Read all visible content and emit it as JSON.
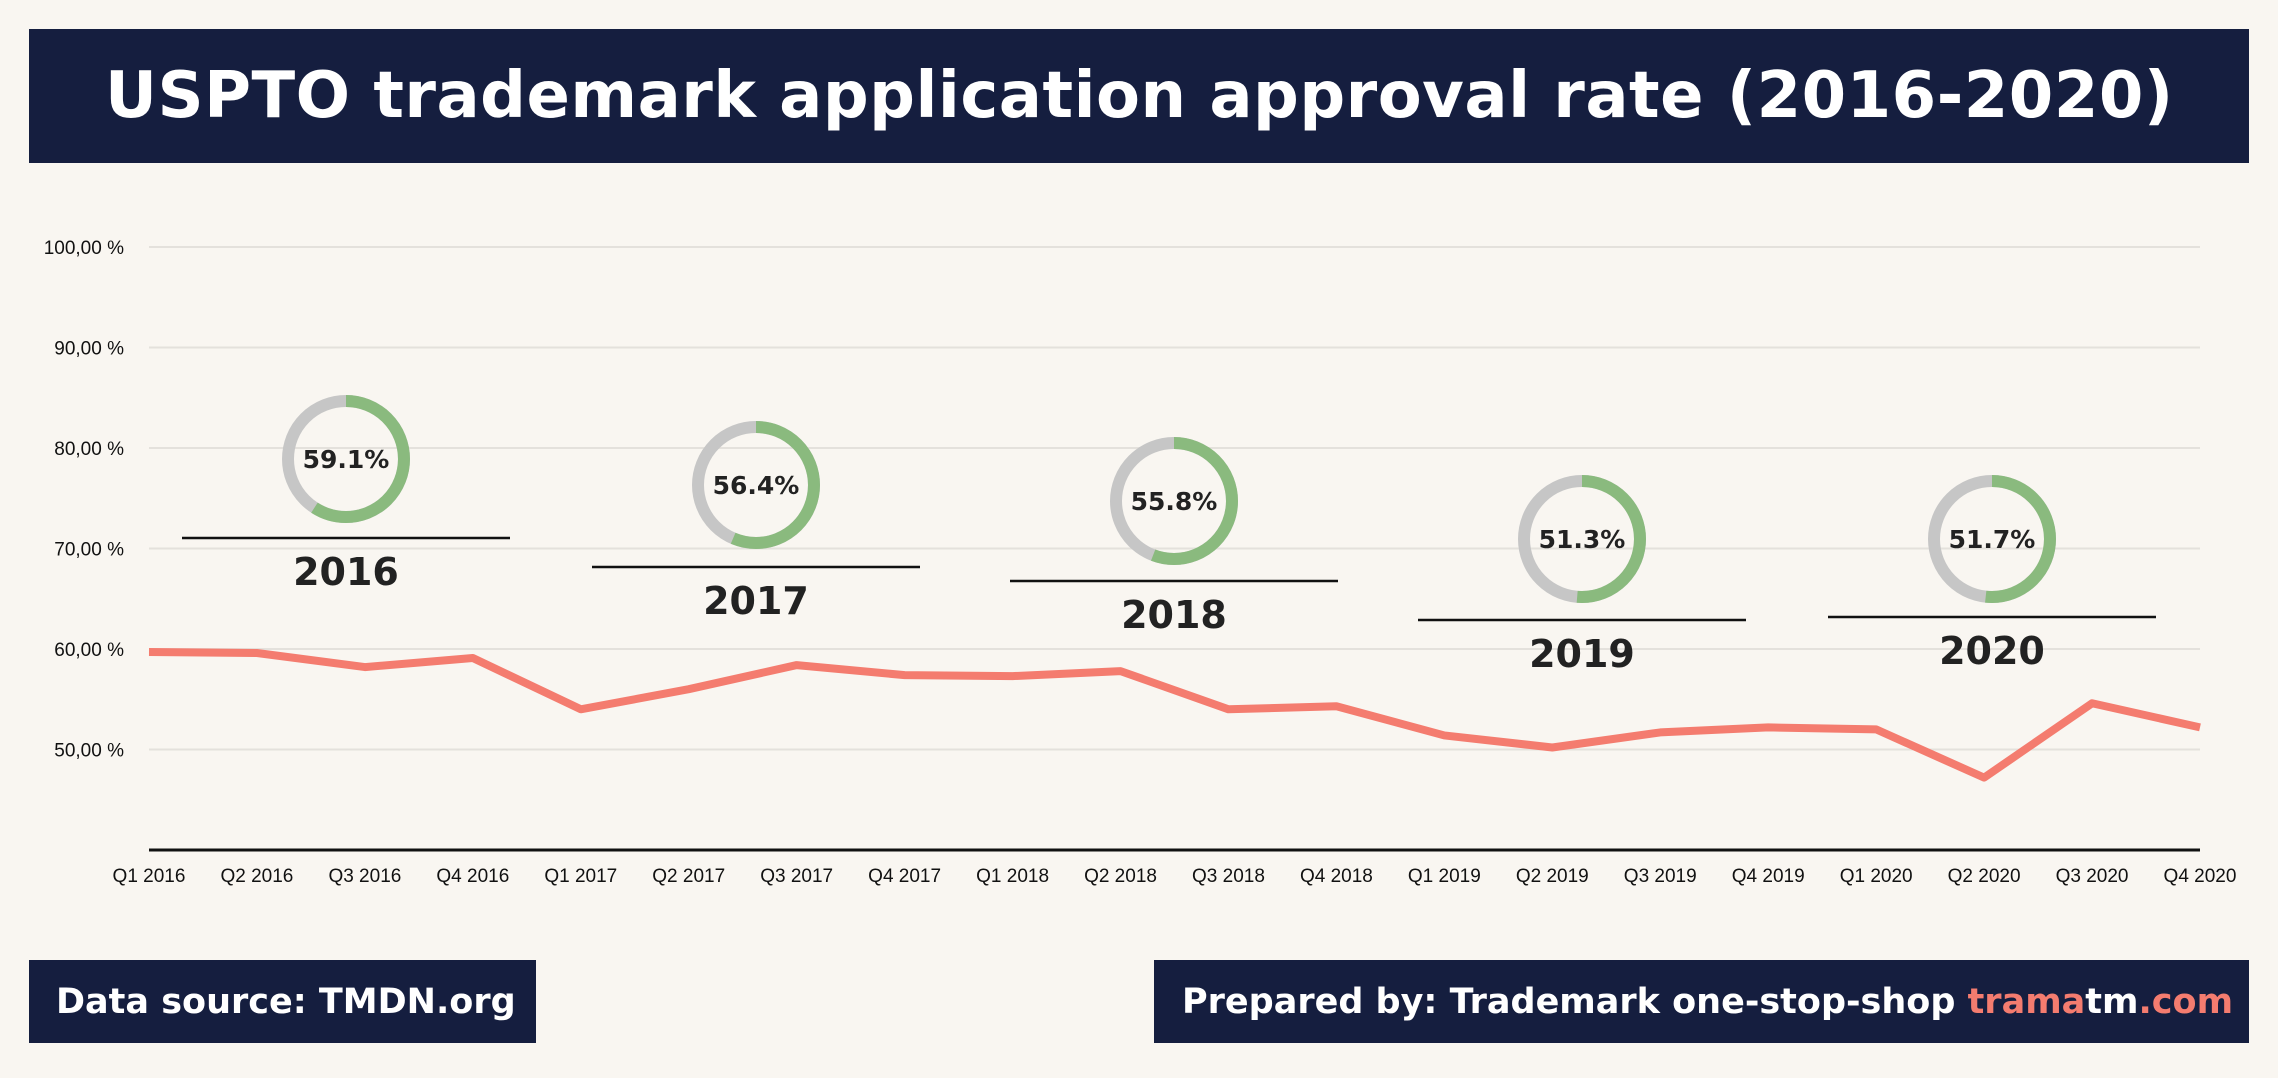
{
  "header": {
    "title": "USPTO trademark application approval rate (2016-2020)"
  },
  "footer": {
    "source": "Data source: TMDN.org",
    "prepared_prefix": "Prepared by: Trademark one-stop-shop ",
    "brand_part1": "trama",
    "brand_part2": "tm",
    "brand_part3": ".com"
  },
  "colors": {
    "navy": "#151e3f",
    "background": "#f9f6f1",
    "line": "#f47c6f",
    "donut_fill": "#8aba7e",
    "donut_rest": "#c6c6c6"
  },
  "chart_data": {
    "type": "line",
    "categories": [
      "Q1 2016",
      "Q2 2016",
      "Q3 2016",
      "Q4 2016",
      "Q1 2017",
      "Q2 2017",
      "Q3 2017",
      "Q4 2017",
      "Q1 2018",
      "Q2 2018",
      "Q3 2018",
      "Q4 2018",
      "Q1 2019",
      "Q2 2019",
      "Q3 2019",
      "Q4 2019",
      "Q1 2020",
      "Q2 2020",
      "Q3 2020",
      "Q4 2020"
    ],
    "values": [
      59.7,
      59.6,
      58.2,
      59.1,
      54.0,
      56.0,
      58.4,
      57.4,
      57.3,
      57.8,
      54.0,
      54.3,
      51.4,
      50.2,
      51.7,
      52.2,
      52.0,
      47.2,
      54.6,
      52.2
    ],
    "ylim": [
      40,
      100
    ],
    "yticks": [
      50,
      60,
      70,
      80,
      90,
      100
    ],
    "ytick_labels": [
      "50,00 %",
      "60,00 %",
      "70,00 %",
      "80,00 %",
      "90,00 %",
      "100,00 %"
    ],
    "grid": true,
    "annotations": [
      {
        "year": "2016",
        "rate_label": "59.1%",
        "rate": 59.1
      },
      {
        "year": "2017",
        "rate_label": "56.4%",
        "rate": 56.4
      },
      {
        "year": "2018",
        "rate_label": "55.8%",
        "rate": 55.8
      },
      {
        "year": "2019",
        "rate_label": "51.3%",
        "rate": 51.3
      },
      {
        "year": "2020",
        "rate_label": "51.7%",
        "rate": 51.7
      }
    ]
  }
}
